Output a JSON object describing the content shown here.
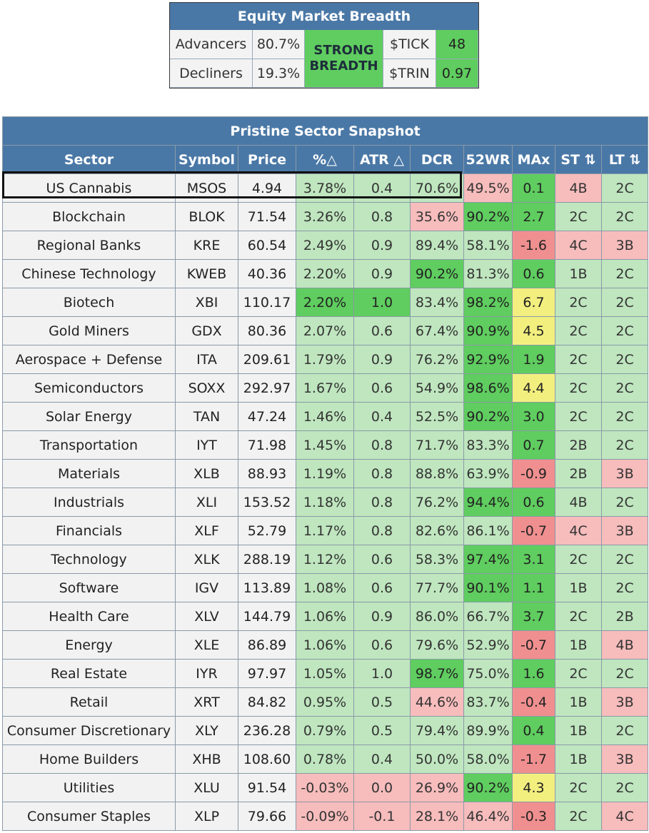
{
  "breadth": {
    "title": "Equity Market Breadth",
    "advancers_label": "Advancers",
    "advancers_value": "80.7%",
    "decliners_label": "Decliners",
    "decliners_value": "19.3%",
    "status_line1": "STRONG",
    "status_line2": "BREADTH",
    "tick_label": "$TICK",
    "tick_value": "48",
    "trin_label": "$TRIN",
    "trin_value": "0.97"
  },
  "snapshot": {
    "title": "Pristine Sector Snapshot",
    "highlighted_sector": "US Cannabis",
    "columns": [
      "Sector",
      "Symbol",
      "Price",
      "%△",
      "ATR △",
      "DCR",
      "52WR",
      "MAx",
      "ST ⇅",
      "LT ⇅"
    ],
    "colors": {
      "header": "#4a78a6",
      "light_green": "#bfe6bf",
      "green": "#5fcd5f",
      "light_red": "#f7bcbc",
      "red": "#f08f8f",
      "yellow": "#f3ef7f"
    },
    "rows": [
      {
        "sector": "US Cannabis",
        "symbol": "MSOS",
        "price": "4.94",
        "pct": "3.78%",
        "atr": "0.4",
        "dcr": "70.6%",
        "wr52": "49.5%",
        "max": "0.1",
        "st": "4B",
        "lt": "2C",
        "cls": {
          "pct": "c-lg",
          "atr": "c-lg",
          "dcr": "c-lg",
          "wr52": "c-r",
          "max": "c-g",
          "st": "c-r",
          "lt": "c-lg"
        }
      },
      {
        "sector": "Blockchain",
        "symbol": "BLOK",
        "price": "71.54",
        "pct": "3.26%",
        "atr": "0.8",
        "dcr": "35.6%",
        "wr52": "90.2%",
        "max": "2.7",
        "st": "2C",
        "lt": "2C",
        "cls": {
          "pct": "c-lg",
          "atr": "c-lg",
          "dcr": "c-r",
          "wr52": "c-g",
          "max": "c-g",
          "st": "c-lg",
          "lt": "c-lg"
        }
      },
      {
        "sector": "Regional Banks",
        "symbol": "KRE",
        "price": "60.54",
        "pct": "2.49%",
        "atr": "0.9",
        "dcr": "89.4%",
        "wr52": "58.1%",
        "max": "-1.6",
        "st": "4C",
        "lt": "3B",
        "cls": {
          "pct": "c-lg",
          "atr": "c-lg",
          "dcr": "c-lg",
          "wr52": "c-lg",
          "max": "c-rd",
          "st": "c-r",
          "lt": "c-r"
        }
      },
      {
        "sector": "Chinese Technology",
        "symbol": "KWEB",
        "price": "40.36",
        "pct": "2.20%",
        "atr": "0.9",
        "dcr": "90.2%",
        "wr52": "81.3%",
        "max": "0.6",
        "st": "1B",
        "lt": "2C",
        "cls": {
          "pct": "c-lg",
          "atr": "c-lg",
          "dcr": "c-g",
          "wr52": "c-lg",
          "max": "c-g",
          "st": "c-lg",
          "lt": "c-lg"
        }
      },
      {
        "sector": "Biotech",
        "symbol": "XBI",
        "price": "110.17",
        "pct": "2.20%",
        "atr": "1.0",
        "dcr": "83.4%",
        "wr52": "98.2%",
        "max": "6.7",
        "st": "2C",
        "lt": "2C",
        "cls": {
          "pct": "c-g",
          "atr": "c-g",
          "dcr": "c-lg",
          "wr52": "c-g",
          "max": "c-y",
          "st": "c-lg",
          "lt": "c-lg"
        }
      },
      {
        "sector": "Gold Miners",
        "symbol": "GDX",
        "price": "80.36",
        "pct": "2.07%",
        "atr": "0.6",
        "dcr": "67.4%",
        "wr52": "90.9%",
        "max": "4.5",
        "st": "2C",
        "lt": "2C",
        "cls": {
          "pct": "c-lg",
          "atr": "c-lg",
          "dcr": "c-lg",
          "wr52": "c-g",
          "max": "c-y",
          "st": "c-lg",
          "lt": "c-lg"
        }
      },
      {
        "sector": "Aerospace + Defense",
        "symbol": "ITA",
        "price": "209.61",
        "pct": "1.79%",
        "atr": "0.9",
        "dcr": "76.2%",
        "wr52": "92.9%",
        "max": "1.9",
        "st": "2C",
        "lt": "2C",
        "cls": {
          "pct": "c-lg",
          "atr": "c-lg",
          "dcr": "c-lg",
          "wr52": "c-g",
          "max": "c-g",
          "st": "c-lg",
          "lt": "c-lg"
        }
      },
      {
        "sector": "Semiconductors",
        "symbol": "SOXX",
        "price": "292.97",
        "pct": "1.67%",
        "atr": "0.6",
        "dcr": "54.9%",
        "wr52": "98.6%",
        "max": "4.4",
        "st": "2C",
        "lt": "2C",
        "cls": {
          "pct": "c-lg",
          "atr": "c-lg",
          "dcr": "c-lg",
          "wr52": "c-g",
          "max": "c-y",
          "st": "c-lg",
          "lt": "c-lg"
        }
      },
      {
        "sector": "Solar Energy",
        "symbol": "TAN",
        "price": "47.24",
        "pct": "1.46%",
        "atr": "0.4",
        "dcr": "52.5%",
        "wr52": "90.2%",
        "max": "3.0",
        "st": "2C",
        "lt": "2C",
        "cls": {
          "pct": "c-lg",
          "atr": "c-lg",
          "dcr": "c-lg",
          "wr52": "c-g",
          "max": "c-g",
          "st": "c-lg",
          "lt": "c-lg"
        }
      },
      {
        "sector": "Transportation",
        "symbol": "IYT",
        "price": "71.98",
        "pct": "1.45%",
        "atr": "0.8",
        "dcr": "71.7%",
        "wr52": "83.3%",
        "max": "0.7",
        "st": "2B",
        "lt": "2C",
        "cls": {
          "pct": "c-lg",
          "atr": "c-lg",
          "dcr": "c-lg",
          "wr52": "c-lg",
          "max": "c-g",
          "st": "c-lg",
          "lt": "c-lg"
        }
      },
      {
        "sector": "Materials",
        "symbol": "XLB",
        "price": "88.93",
        "pct": "1.19%",
        "atr": "0.8",
        "dcr": "88.8%",
        "wr52": "63.9%",
        "max": "-0.9",
        "st": "2B",
        "lt": "3B",
        "cls": {
          "pct": "c-lg",
          "atr": "c-lg",
          "dcr": "c-lg",
          "wr52": "c-lg",
          "max": "c-rd",
          "st": "c-lg",
          "lt": "c-r"
        }
      },
      {
        "sector": "Industrials",
        "symbol": "XLI",
        "price": "153.52",
        "pct": "1.18%",
        "atr": "0.8",
        "dcr": "76.2%",
        "wr52": "94.4%",
        "max": "0.6",
        "st": "4B",
        "lt": "2C",
        "cls": {
          "pct": "c-lg",
          "atr": "c-lg",
          "dcr": "c-lg",
          "wr52": "c-g",
          "max": "c-g",
          "st": "c-lg",
          "lt": "c-lg"
        }
      },
      {
        "sector": "Financials",
        "symbol": "XLF",
        "price": "52.79",
        "pct": "1.17%",
        "atr": "0.8",
        "dcr": "82.6%",
        "wr52": "86.1%",
        "max": "-0.7",
        "st": "4C",
        "lt": "3B",
        "cls": {
          "pct": "c-lg",
          "atr": "c-lg",
          "dcr": "c-lg",
          "wr52": "c-lg",
          "max": "c-rd",
          "st": "c-r",
          "lt": "c-r"
        }
      },
      {
        "sector": "Technology",
        "symbol": "XLK",
        "price": "288.19",
        "pct": "1.12%",
        "atr": "0.6",
        "dcr": "58.3%",
        "wr52": "97.4%",
        "max": "3.1",
        "st": "2C",
        "lt": "2C",
        "cls": {
          "pct": "c-lg",
          "atr": "c-lg",
          "dcr": "c-lg",
          "wr52": "c-g",
          "max": "c-g",
          "st": "c-lg",
          "lt": "c-lg"
        }
      },
      {
        "sector": "Software",
        "symbol": "IGV",
        "price": "113.89",
        "pct": "1.08%",
        "atr": "0.6",
        "dcr": "77.7%",
        "wr52": "90.1%",
        "max": "1.1",
        "st": "1B",
        "lt": "2C",
        "cls": {
          "pct": "c-lg",
          "atr": "c-lg",
          "dcr": "c-lg",
          "wr52": "c-g",
          "max": "c-g",
          "st": "c-lg",
          "lt": "c-lg"
        }
      },
      {
        "sector": "Health Care",
        "symbol": "XLV",
        "price": "144.79",
        "pct": "1.06%",
        "atr": "0.9",
        "dcr": "86.0%",
        "wr52": "66.7%",
        "max": "3.7",
        "st": "2C",
        "lt": "2B",
        "cls": {
          "pct": "c-lg",
          "atr": "c-lg",
          "dcr": "c-lg",
          "wr52": "c-lg",
          "max": "c-g",
          "st": "c-lg",
          "lt": "c-lg"
        }
      },
      {
        "sector": "Energy",
        "symbol": "XLE",
        "price": "86.89",
        "pct": "1.06%",
        "atr": "0.6",
        "dcr": "79.6%",
        "wr52": "52.9%",
        "max": "-0.7",
        "st": "1B",
        "lt": "4B",
        "cls": {
          "pct": "c-lg",
          "atr": "c-lg",
          "dcr": "c-lg",
          "wr52": "c-lg",
          "max": "c-rd",
          "st": "c-lg",
          "lt": "c-r"
        }
      },
      {
        "sector": "Real Estate",
        "symbol": "IYR",
        "price": "97.97",
        "pct": "1.05%",
        "atr": "1.0",
        "dcr": "98.7%",
        "wr52": "75.0%",
        "max": "1.6",
        "st": "2C",
        "lt": "2C",
        "cls": {
          "pct": "c-lg",
          "atr": "c-lg",
          "dcr": "c-g",
          "wr52": "c-lg",
          "max": "c-g",
          "st": "c-lg",
          "lt": "c-lg"
        }
      },
      {
        "sector": "Retail",
        "symbol": "XRT",
        "price": "84.82",
        "pct": "0.95%",
        "atr": "0.5",
        "dcr": "44.6%",
        "wr52": "83.7%",
        "max": "-0.4",
        "st": "1B",
        "lt": "3B",
        "cls": {
          "pct": "c-lg",
          "atr": "c-lg",
          "dcr": "c-r",
          "wr52": "c-lg",
          "max": "c-rd",
          "st": "c-lg",
          "lt": "c-r"
        }
      },
      {
        "sector": "Consumer Discretionary",
        "symbol": "XLY",
        "price": "236.28",
        "pct": "0.79%",
        "atr": "0.5",
        "dcr": "79.4%",
        "wr52": "89.9%",
        "max": "0.4",
        "st": "1B",
        "lt": "2C",
        "cls": {
          "pct": "c-lg",
          "atr": "c-lg",
          "dcr": "c-lg",
          "wr52": "c-lg",
          "max": "c-g",
          "st": "c-lg",
          "lt": "c-lg"
        }
      },
      {
        "sector": "Home Builders",
        "symbol": "XHB",
        "price": "108.60",
        "pct": "0.78%",
        "atr": "0.4",
        "dcr": "50.0%",
        "wr52": "58.0%",
        "max": "-1.7",
        "st": "1B",
        "lt": "3B",
        "cls": {
          "pct": "c-lg",
          "atr": "c-lg",
          "dcr": "c-lg",
          "wr52": "c-lg",
          "max": "c-rd",
          "st": "c-lg",
          "lt": "c-r"
        }
      },
      {
        "sector": "Utilities",
        "symbol": "XLU",
        "price": "91.54",
        "pct": "-0.03%",
        "atr": "0.0",
        "dcr": "26.9%",
        "wr52": "90.2%",
        "max": "4.3",
        "st": "2C",
        "lt": "2C",
        "cls": {
          "pct": "c-r",
          "atr": "c-r",
          "dcr": "c-r",
          "wr52": "c-g",
          "max": "c-y",
          "st": "c-lg",
          "lt": "c-lg"
        }
      },
      {
        "sector": "Consumer Staples",
        "symbol": "XLP",
        "price": "79.66",
        "pct": "-0.09%",
        "atr": "-0.1",
        "dcr": "28.1%",
        "wr52": "46.4%",
        "max": "-0.3",
        "st": "2C",
        "lt": "4C",
        "cls": {
          "pct": "c-r",
          "atr": "c-r",
          "dcr": "c-r",
          "wr52": "c-r",
          "max": "c-rd",
          "st": "c-lg",
          "lt": "c-r"
        }
      }
    ]
  }
}
